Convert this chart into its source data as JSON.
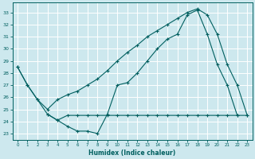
{
  "xlabel": "Humidex (Indice chaleur)",
  "bg_color": "#cde8ee",
  "line_color": "#005f5f",
  "grid_color": "#ffffff",
  "xlim": [
    -0.5,
    23.5
  ],
  "ylim": [
    22.5,
    33.8
  ],
  "yticks": [
    23,
    24,
    25,
    26,
    27,
    28,
    29,
    30,
    31,
    32,
    33
  ],
  "xticks": [
    0,
    1,
    2,
    3,
    4,
    5,
    6,
    7,
    8,
    9,
    10,
    11,
    12,
    13,
    14,
    15,
    16,
    17,
    18,
    19,
    20,
    21,
    22,
    23
  ],
  "line1_x": [
    0,
    1,
    2,
    3,
    4,
    5,
    6,
    7,
    8,
    9,
    10,
    11,
    12,
    13,
    14,
    15,
    16,
    17,
    18,
    19,
    20,
    21,
    22
  ],
  "line1_y": [
    28.5,
    27.0,
    25.8,
    24.6,
    24.1,
    23.6,
    23.2,
    23.2,
    23.0,
    24.6,
    27.0,
    27.2,
    28.0,
    29.0,
    30.0,
    30.8,
    31.2,
    32.8,
    33.2,
    31.2,
    28.7,
    27.0,
    24.5
  ],
  "line2_x": [
    3,
    4,
    5,
    6,
    7,
    8,
    9,
    10,
    11,
    12,
    13,
    14,
    15,
    16,
    17,
    18,
    19,
    20,
    21,
    22,
    23
  ],
  "line2_y": [
    24.6,
    24.1,
    24.5,
    24.5,
    24.5,
    24.5,
    24.5,
    24.5,
    24.5,
    24.5,
    24.5,
    24.5,
    24.5,
    24.5,
    24.5,
    24.5,
    24.5,
    24.5,
    24.5,
    24.5,
    24.5
  ],
  "line3_x": [
    0,
    1,
    2,
    3,
    4,
    5,
    6,
    7,
    8,
    9,
    10,
    11,
    12,
    13,
    14,
    15,
    16,
    17,
    18,
    19,
    20,
    21,
    22,
    23
  ],
  "line3_y": [
    28.5,
    27.0,
    25.8,
    25.0,
    25.8,
    26.2,
    26.5,
    27.0,
    27.5,
    28.2,
    29.0,
    29.7,
    30.3,
    31.0,
    31.5,
    32.0,
    32.5,
    33.0,
    33.3,
    32.8,
    31.2,
    28.7,
    27.0,
    24.5
  ]
}
